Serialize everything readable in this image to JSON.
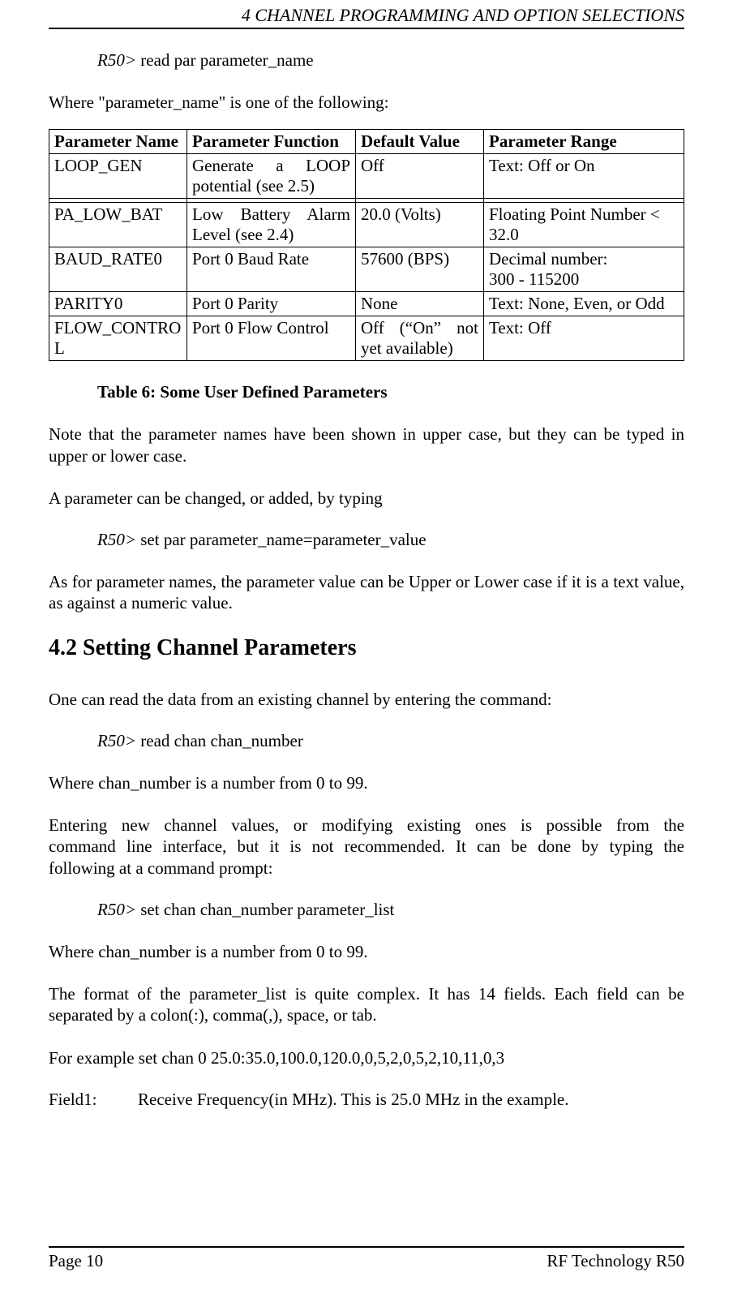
{
  "header": {
    "running_head": "4  CHANNEL PROGRAMMING AND OPTION SELECTIONS"
  },
  "prompt": "R50>",
  "cmd": {
    "read_par": " read par parameter_name",
    "set_par": " set par parameter_name=parameter_value",
    "read_chan": " read chan chan_number",
    "set_chan": " set chan chan_number parameter_list"
  },
  "body": {
    "p01": "Where \"parameter_name\" is one of the following:",
    "caption": "Table 6:  Some User Defined Parameters",
    "p02": "Note that the parameter names have been shown in upper case, but they can be typed in upper or lower case.",
    "p03": "A parameter can be changed, or added, by typing",
    "p04": "As for parameter names, the parameter value can be Upper or Lower case if it is a text value, as against a numeric value.",
    "h2": "4.2  Setting Channel Parameters",
    "p05": "One can read the data from an existing channel by entering the command:",
    "p06": "Where chan_number is a number from 0 to 99.",
    "p07_l1": "Entering new channel values, or modifying existing ones is possible from the",
    "p07_l2": "command line interface, but it is not recommended.   It can be done by typing the",
    "p07_l3": "following at a command prompt:",
    "p08": "Where chan_number is a number from 0 to 99.",
    "p09": "The format of the parameter_list is quite complex.  It has 14 fields.  Each field can be separated by a colon(:), comma(,), space, or tab.",
    "p10": "For example set chan 0 25.0:35.0,100.0,120.0,0,5,2,0,5,2,10,11,0,3",
    "field1_label": "Field1:",
    "field1_text": "Receive Frequency(in MHz).  This is 25.0 MHz in the   example."
  },
  "table": {
    "headers": {
      "name": "Parameter Name",
      "func": "Parameter Function",
      "def": "Default Value",
      "range": "Parameter Range"
    },
    "rows": {
      "r0": {
        "name": "LOOP_GEN",
        "func_l1": "Generate a LOOP",
        "func_l2": "potential (see 2.5)",
        "def": "Off",
        "range": "Text: Off or On"
      },
      "r1": {
        "name": "",
        "func": "",
        "def": "",
        "range": ""
      },
      "r2": {
        "name": "PA_LOW_BAT",
        "func_l1": "Low Battery Alarm",
        "func_l2": "Level (see 2.4)",
        "def": "20.0 (Volts)",
        "range": "Floating Point Number < 32.0"
      },
      "r3": {
        "name": "BAUD_RATE0",
        "func": "Port 0 Baud Rate",
        "def": "57600 (BPS)",
        "range_l1": "Decimal number:",
        "range_l2": "300 - 115200"
      },
      "r4": {
        "name": "PARITY0",
        "func": "Port 0 Parity",
        "def": "None",
        "range": "Text: None, Even, or Odd"
      },
      "r5": {
        "name": "FLOW_CONTROL",
        "func": "Port 0 Flow Control",
        "def_l1": "Off (“On” not",
        "def_l2": "yet available)",
        "range": "Text: Off"
      }
    }
  },
  "footer": {
    "left": "Page 10",
    "right": "RF Technology   R50"
  }
}
